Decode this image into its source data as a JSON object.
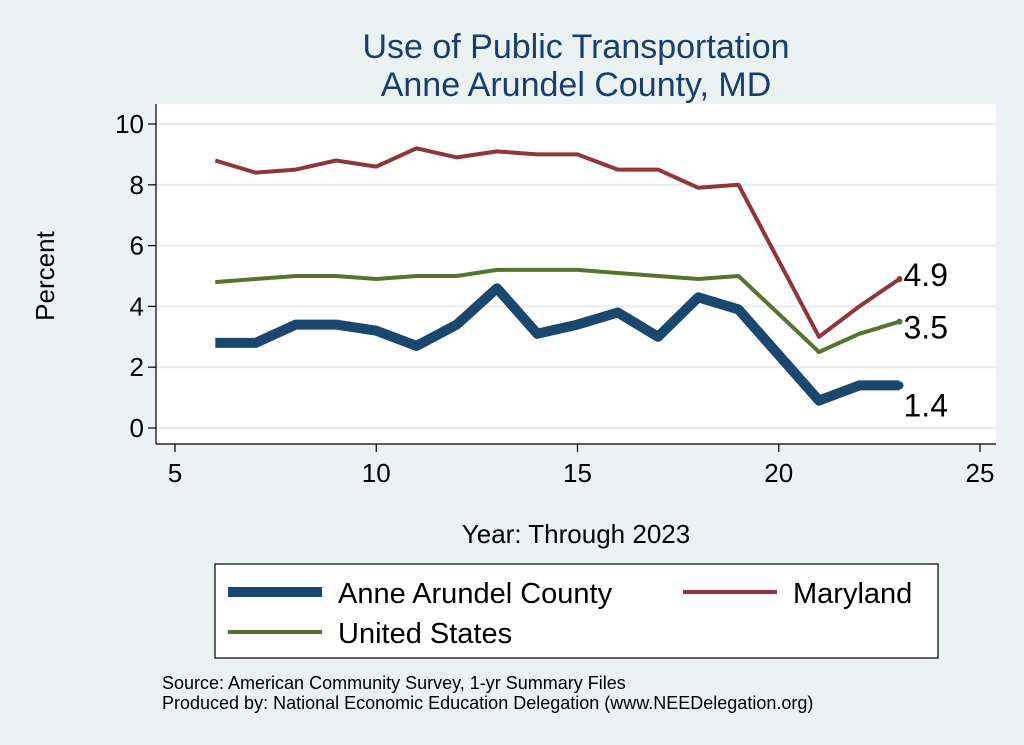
{
  "chart_data": {
    "type": "line",
    "title": [
      "Use of Public Transportation",
      "Anne Arundel County, MD"
    ],
    "xlabel": "Year: Through 2023",
    "ylabel": "Percent",
    "xlim": [
      5,
      25
    ],
    "ylim": [
      0,
      10
    ],
    "xticks": [
      5,
      10,
      15,
      20,
      25
    ],
    "yticks": [
      0,
      2,
      4,
      6,
      8,
      10
    ],
    "grid": "horizontal",
    "x": [
      6,
      7,
      8,
      9,
      10,
      11,
      12,
      13,
      14,
      15,
      16,
      17,
      18,
      19,
      21,
      22,
      23
    ],
    "series": [
      {
        "name": "Anne Arundel County",
        "color": "#1a476f",
        "values": [
          2.8,
          2.8,
          3.4,
          3.4,
          3.2,
          2.7,
          3.4,
          4.6,
          3.1,
          3.4,
          3.8,
          3.0,
          4.3,
          3.9,
          0.9,
          1.4,
          1.4
        ],
        "end_label": "1.4"
      },
      {
        "name": "Maryland",
        "color": "#90353b",
        "values": [
          8.8,
          8.4,
          8.5,
          8.8,
          8.6,
          9.2,
          8.9,
          9.1,
          9.0,
          9.0,
          8.5,
          8.5,
          7.9,
          8.0,
          3.0,
          4.0,
          4.9
        ],
        "end_label": "4.9"
      },
      {
        "name": "United States",
        "color": "#55752f",
        "values": [
          4.8,
          4.9,
          5.0,
          5.0,
          4.9,
          5.0,
          5.0,
          5.2,
          5.2,
          5.2,
          5.1,
          5.0,
          4.9,
          5.0,
          2.5,
          3.1,
          3.5
        ],
        "end_label": "3.5"
      }
    ],
    "legend": {
      "position": "bottom",
      "entries": [
        "Anne Arundel County",
        "Maryland",
        "United States"
      ]
    },
    "notes": [
      "Source: American Community Survey, 1-yr Summary Files",
      "Produced by: National Economic Education Delegation (www.NEEDelegation.org)"
    ]
  }
}
